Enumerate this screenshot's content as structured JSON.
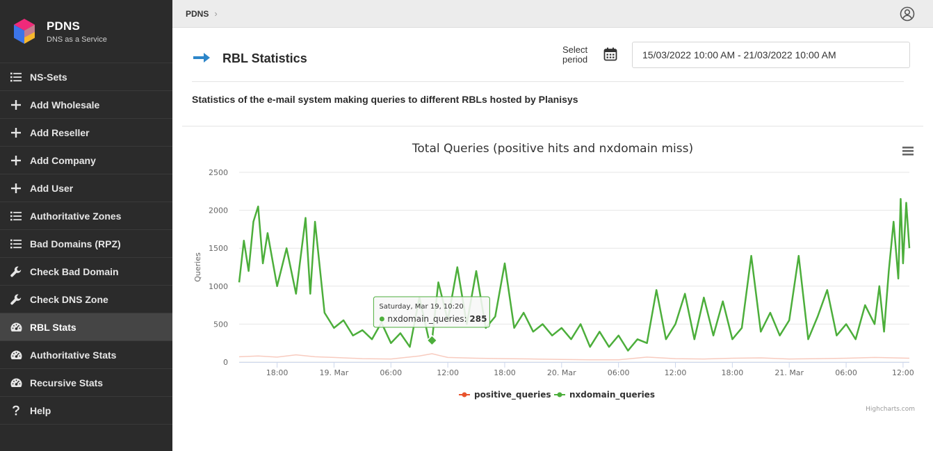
{
  "brand": {
    "name": "PDNS",
    "tagline": "DNS as a Service"
  },
  "sidebar": {
    "items": [
      {
        "label": "NS-Sets",
        "icon": "list-icon",
        "active": false
      },
      {
        "label": "Add Wholesale",
        "icon": "plus-icon",
        "active": false
      },
      {
        "label": "Add Reseller",
        "icon": "plus-icon",
        "active": false
      },
      {
        "label": "Add Company",
        "icon": "plus-icon",
        "active": false
      },
      {
        "label": "Add User",
        "icon": "plus-icon",
        "active": false
      },
      {
        "label": "Authoritative Zones",
        "icon": "list-icon",
        "active": false
      },
      {
        "label": "Bad Domains (RPZ)",
        "icon": "list-icon",
        "active": false
      },
      {
        "label": "Check Bad Domain",
        "icon": "wrench-icon",
        "active": false
      },
      {
        "label": "Check DNS Zone",
        "icon": "wrench-icon",
        "active": false
      },
      {
        "label": "RBL Stats",
        "icon": "gauge-icon",
        "active": true
      },
      {
        "label": "Authoritative Stats",
        "icon": "gauge-icon",
        "active": false
      },
      {
        "label": "Recursive Stats",
        "icon": "gauge-icon",
        "active": false
      },
      {
        "label": "Help",
        "icon": "question-icon",
        "active": false
      }
    ]
  },
  "topbar": {
    "breadcrumb": "PDNS",
    "breadcrumb_sep": "›"
  },
  "page": {
    "title": "RBL Statistics",
    "period_label": "Select period",
    "period_value": "15/03/2022 10:00 AM - 21/03/2022 10:00 AM",
    "description": "Statistics of the e-mail system making queries to different RBLs hosted by Planisys"
  },
  "colors": {
    "accent": "#2d86c9",
    "positive": "#e8532c",
    "nxdomain": "#4cae3b",
    "sidebar_bg": "#2b2b2b"
  },
  "chart_data": {
    "type": "line",
    "title": "Total Queries (positive hits and nxdomain miss)",
    "ylabel": "Queries",
    "ylim": [
      0,
      2500
    ],
    "yticks": [
      0,
      500,
      1000,
      1500,
      2000,
      2500
    ],
    "xlim": [
      "2022-03-18 14:00",
      "2022-03-21 12:40"
    ],
    "xticks": [
      {
        "label": "18:00",
        "at": "2022-03-18 18:00"
      },
      {
        "label": "19. Mar",
        "at": "2022-03-19 00:00"
      },
      {
        "label": "06:00",
        "at": "2022-03-19 06:00"
      },
      {
        "label": "12:00",
        "at": "2022-03-19 12:00"
      },
      {
        "label": "18:00",
        "at": "2022-03-19 18:00"
      },
      {
        "label": "20. Mar",
        "at": "2022-03-20 00:00"
      },
      {
        "label": "06:00",
        "at": "2022-03-20 06:00"
      },
      {
        "label": "12:00",
        "at": "2022-03-20 12:00"
      },
      {
        "label": "18:00",
        "at": "2022-03-20 18:00"
      },
      {
        "label": "21. Mar",
        "at": "2022-03-21 00:00"
      },
      {
        "label": "06:00",
        "at": "2022-03-21 06:00"
      },
      {
        "label": "12:00",
        "at": "2022-03-21 12:00"
      }
    ],
    "series": [
      {
        "name": "positive_queries",
        "color": "#e8532c",
        "points": [
          [
            "2022-03-18 14:00",
            70
          ],
          [
            "2022-03-18 16:00",
            80
          ],
          [
            "2022-03-18 18:00",
            65
          ],
          [
            "2022-03-18 20:00",
            95
          ],
          [
            "2022-03-18 22:00",
            70
          ],
          [
            "2022-03-19 00:00",
            60
          ],
          [
            "2022-03-19 03:00",
            45
          ],
          [
            "2022-03-19 06:00",
            40
          ],
          [
            "2022-03-19 09:00",
            80
          ],
          [
            "2022-03-19 10:20",
            110
          ],
          [
            "2022-03-19 12:00",
            60
          ],
          [
            "2022-03-19 15:00",
            50
          ],
          [
            "2022-03-19 18:00",
            45
          ],
          [
            "2022-03-19 21:00",
            40
          ],
          [
            "2022-03-20 00:00",
            35
          ],
          [
            "2022-03-20 03:00",
            30
          ],
          [
            "2022-03-20 06:00",
            30
          ],
          [
            "2022-03-20 09:00",
            65
          ],
          [
            "2022-03-20 12:00",
            45
          ],
          [
            "2022-03-20 15:00",
            40
          ],
          [
            "2022-03-20 18:00",
            50
          ],
          [
            "2022-03-20 21:00",
            55
          ],
          [
            "2022-03-21 00:00",
            40
          ],
          [
            "2022-03-21 03:00",
            45
          ],
          [
            "2022-03-21 06:00",
            50
          ],
          [
            "2022-03-21 09:00",
            60
          ],
          [
            "2022-03-21 12:40",
            50
          ]
        ]
      },
      {
        "name": "nxdomain_queries",
        "color": "#4cae3b",
        "points": [
          [
            "2022-03-18 14:00",
            1050
          ],
          [
            "2022-03-18 14:30",
            1600
          ],
          [
            "2022-03-18 15:00",
            1200
          ],
          [
            "2022-03-18 15:30",
            1850
          ],
          [
            "2022-03-18 16:00",
            2050
          ],
          [
            "2022-03-18 16:30",
            1300
          ],
          [
            "2022-03-18 17:00",
            1700
          ],
          [
            "2022-03-18 18:00",
            1000
          ],
          [
            "2022-03-18 19:00",
            1500
          ],
          [
            "2022-03-18 20:00",
            900
          ],
          [
            "2022-03-18 21:00",
            1900
          ],
          [
            "2022-03-18 21:30",
            900
          ],
          [
            "2022-03-18 22:00",
            1850
          ],
          [
            "2022-03-18 23:00",
            650
          ],
          [
            "2022-03-19 00:00",
            450
          ],
          [
            "2022-03-19 01:00",
            550
          ],
          [
            "2022-03-19 02:00",
            350
          ],
          [
            "2022-03-19 03:00",
            420
          ],
          [
            "2022-03-19 04:00",
            300
          ],
          [
            "2022-03-19 05:00",
            520
          ],
          [
            "2022-03-19 06:00",
            250
          ],
          [
            "2022-03-19 07:00",
            380
          ],
          [
            "2022-03-19 08:00",
            200
          ],
          [
            "2022-03-19 09:00",
            850
          ],
          [
            "2022-03-19 10:00",
            300
          ],
          [
            "2022-03-19 10:20",
            285
          ],
          [
            "2022-03-19 11:00",
            1050
          ],
          [
            "2022-03-19 12:00",
            550
          ],
          [
            "2022-03-19 13:00",
            1250
          ],
          [
            "2022-03-19 14:00",
            500
          ],
          [
            "2022-03-19 15:00",
            1200
          ],
          [
            "2022-03-19 16:00",
            450
          ],
          [
            "2022-03-19 17:00",
            600
          ],
          [
            "2022-03-19 18:00",
            1300
          ],
          [
            "2022-03-19 19:00",
            450
          ],
          [
            "2022-03-19 20:00",
            650
          ],
          [
            "2022-03-19 21:00",
            400
          ],
          [
            "2022-03-19 22:00",
            500
          ],
          [
            "2022-03-19 23:00",
            350
          ],
          [
            "2022-03-20 00:00",
            450
          ],
          [
            "2022-03-20 01:00",
            300
          ],
          [
            "2022-03-20 02:00",
            500
          ],
          [
            "2022-03-20 03:00",
            200
          ],
          [
            "2022-03-20 04:00",
            400
          ],
          [
            "2022-03-20 05:00",
            200
          ],
          [
            "2022-03-20 06:00",
            350
          ],
          [
            "2022-03-20 07:00",
            150
          ],
          [
            "2022-03-20 08:00",
            300
          ],
          [
            "2022-03-20 09:00",
            250
          ],
          [
            "2022-03-20 10:00",
            950
          ],
          [
            "2022-03-20 11:00",
            300
          ],
          [
            "2022-03-20 12:00",
            500
          ],
          [
            "2022-03-20 13:00",
            900
          ],
          [
            "2022-03-20 14:00",
            300
          ],
          [
            "2022-03-20 15:00",
            850
          ],
          [
            "2022-03-20 16:00",
            350
          ],
          [
            "2022-03-20 17:00",
            800
          ],
          [
            "2022-03-20 18:00",
            300
          ],
          [
            "2022-03-20 19:00",
            450
          ],
          [
            "2022-03-20 20:00",
            1400
          ],
          [
            "2022-03-20 21:00",
            400
          ],
          [
            "2022-03-20 22:00",
            650
          ],
          [
            "2022-03-20 23:00",
            350
          ],
          [
            "2022-03-21 00:00",
            550
          ],
          [
            "2022-03-21 01:00",
            1400
          ],
          [
            "2022-03-21 02:00",
            300
          ],
          [
            "2022-03-21 03:00",
            600
          ],
          [
            "2022-03-21 04:00",
            950
          ],
          [
            "2022-03-21 05:00",
            350
          ],
          [
            "2022-03-21 06:00",
            500
          ],
          [
            "2022-03-21 07:00",
            300
          ],
          [
            "2022-03-21 08:00",
            750
          ],
          [
            "2022-03-21 09:00",
            500
          ],
          [
            "2022-03-21 09:30",
            1000
          ],
          [
            "2022-03-21 10:00",
            400
          ],
          [
            "2022-03-21 10:30",
            1200
          ],
          [
            "2022-03-21 11:00",
            1850
          ],
          [
            "2022-03-21 11:30",
            1100
          ],
          [
            "2022-03-21 11:45",
            2150
          ],
          [
            "2022-03-21 12:00",
            1300
          ],
          [
            "2022-03-21 12:20",
            2100
          ],
          [
            "2022-03-21 12:40",
            1500
          ]
        ]
      }
    ],
    "tooltip": {
      "title": "Saturday, Mar 19, 10:20",
      "series": "nxdomain_queries",
      "value": "285",
      "at": "2022-03-19 10:20"
    },
    "legend": {
      "position": "bottom-center"
    },
    "grid": true,
    "credits": "Highcharts.com"
  }
}
